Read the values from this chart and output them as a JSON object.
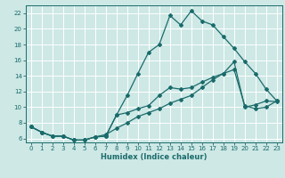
{
  "xlabel": "Humidex (Indice chaleur)",
  "xlim": [
    -0.5,
    23.5
  ],
  "ylim": [
    5.5,
    23.0
  ],
  "yticks": [
    6,
    8,
    10,
    12,
    14,
    16,
    18,
    20,
    22
  ],
  "xticks": [
    0,
    1,
    2,
    3,
    4,
    5,
    6,
    7,
    8,
    9,
    10,
    11,
    12,
    13,
    14,
    15,
    16,
    17,
    18,
    19,
    20,
    21,
    22,
    23
  ],
  "bg_color": "#cde8e5",
  "grid_color": "#ffffff",
  "line_color": "#1a6b6b",
  "line1_y": [
    7.5,
    6.8,
    6.3,
    6.3,
    5.8,
    5.8,
    6.2,
    6.3,
    9.0,
    11.5,
    14.3,
    17.0,
    18.0,
    21.7,
    20.5,
    22.3,
    21.0,
    20.5,
    19.0,
    17.5,
    15.8,
    14.3,
    12.3,
    10.8
  ],
  "line2_y": [
    7.5,
    6.8,
    6.3,
    6.3,
    5.8,
    5.8,
    6.2,
    6.3,
    9.0,
    9.3,
    9.8,
    10.2,
    11.5,
    12.5,
    12.3,
    12.5,
    13.2,
    13.8,
    14.3,
    15.8,
    10.0,
    10.3,
    10.8,
    10.7
  ],
  "line3_y": [
    7.5,
    6.8,
    6.3,
    6.3,
    5.8,
    5.8,
    6.2,
    6.5,
    7.3,
    8.0,
    8.8,
    9.3,
    9.8,
    10.5,
    11.0,
    11.5,
    12.5,
    13.5,
    14.3,
    14.8,
    10.2,
    9.8,
    10.0,
    10.8
  ],
  "marker": "D",
  "markersize": 2.0,
  "linewidth": 0.9,
  "tick_fontsize": 5.0,
  "xlabel_fontsize": 6.0
}
